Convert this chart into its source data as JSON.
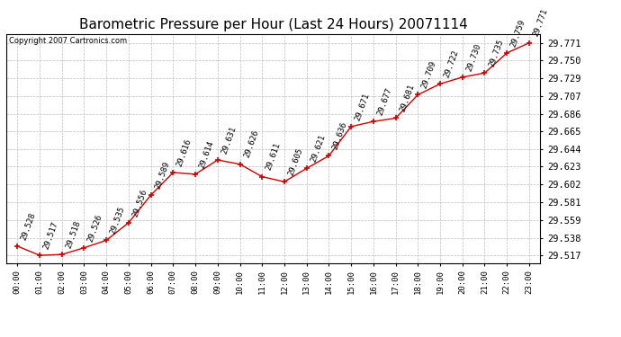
{
  "title": "Barometric Pressure per Hour (Last 24 Hours) 20071114",
  "copyright": "Copyright 2007 Cartronics.com",
  "hours": [
    "00:00",
    "01:00",
    "02:00",
    "03:00",
    "04:00",
    "05:00",
    "06:00",
    "07:00",
    "08:00",
    "09:00",
    "10:00",
    "11:00",
    "12:00",
    "13:00",
    "14:00",
    "15:00",
    "16:00",
    "17:00",
    "18:00",
    "19:00",
    "20:00",
    "21:00",
    "22:00",
    "23:00"
  ],
  "values": [
    29.528,
    29.517,
    29.518,
    29.526,
    29.535,
    29.556,
    29.589,
    29.616,
    29.614,
    29.631,
    29.626,
    29.611,
    29.605,
    29.621,
    29.636,
    29.671,
    29.677,
    29.681,
    29.709,
    29.722,
    29.73,
    29.735,
    29.759,
    29.771
  ],
  "line_color": "#cc0000",
  "marker_color": "#cc0000",
  "bg_color": "#ffffff",
  "grid_color": "#bbbbbb",
  "ytick_values": [
    29.517,
    29.538,
    29.559,
    29.581,
    29.602,
    29.623,
    29.644,
    29.665,
    29.686,
    29.707,
    29.729,
    29.75,
    29.771
  ],
  "ymin": 29.508,
  "ymax": 29.782,
  "title_fontsize": 11,
  "annotation_fontsize": 6.5,
  "label_rotation": 70
}
